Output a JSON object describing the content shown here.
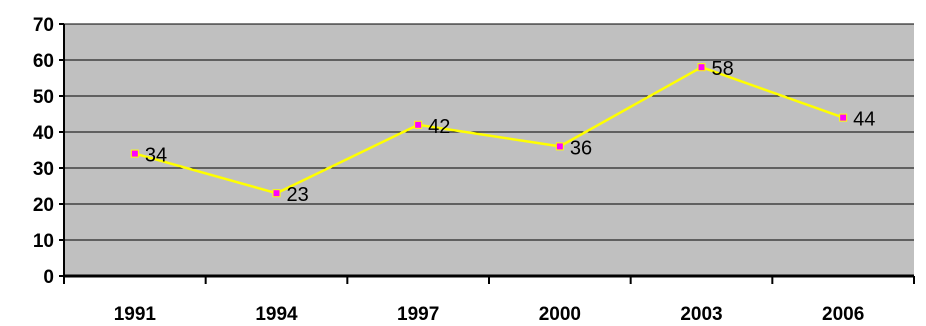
{
  "chart_data": {
    "type": "line",
    "categories": [
      "1991",
      "1994",
      "1997",
      "2000",
      "2003",
      "2006"
    ],
    "series": [
      {
        "values": [
          34,
          23,
          42,
          36,
          58,
          44
        ]
      }
    ],
    "y_ticks": [
      "0",
      "10",
      "20",
      "30",
      "40",
      "50",
      "60",
      "70"
    ],
    "data_labels": [
      "34",
      "23",
      "42",
      "36",
      "58",
      "44"
    ],
    "ylim": [
      0,
      70
    ],
    "grid": true,
    "colors": {
      "plot_background": "#c0c0c0",
      "line": "#ffff00",
      "marker": "#ff00ff",
      "gridline": "#000000"
    }
  }
}
